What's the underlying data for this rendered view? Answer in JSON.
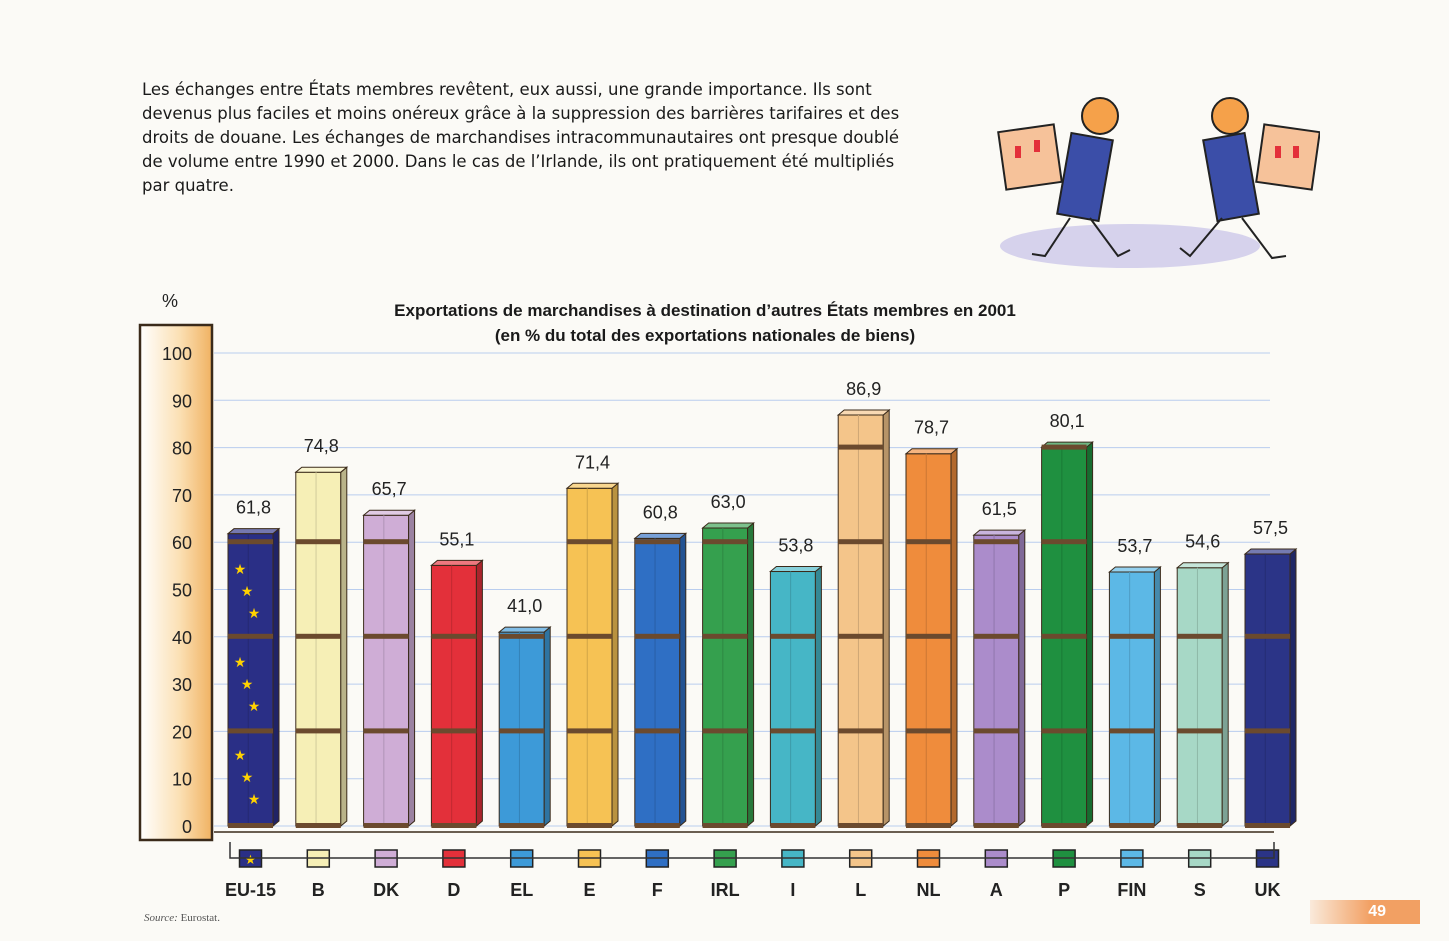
{
  "intro_text": "Les échanges entre États membres revêtent, eux aussi, une grande importance. Ils sont devenus plus faciles et moins onéreux grâce à la suppression des barrières tarifaires et des droits de douane. Les échanges de marchandises intracommunautaires ont presque doublé de volume entre 1990 et 2000. Dans le cas de l’Irlande, ils ont pratiquement été multipliés par quatre.",
  "chart_data": {
    "type": "bar",
    "title": "Exportations de marchandises à destination d’autres États membres en 2001",
    "subtitle": "(en % du total des exportations nationales de biens)",
    "ylabel": "%",
    "ylim": [
      0,
      100
    ],
    "yticks": [
      "0",
      "10",
      "20",
      "30",
      "40",
      "50",
      "60",
      "70",
      "80",
      "90",
      "100"
    ],
    "grid": true,
    "categories": [
      "EU-15",
      "B",
      "DK",
      "D",
      "EL",
      "E",
      "F",
      "IRL",
      "I",
      "L",
      "NL",
      "A",
      "P",
      "FIN",
      "S",
      "UK"
    ],
    "values": [
      61.8,
      74.8,
      65.7,
      55.1,
      41.0,
      71.4,
      60.8,
      63.0,
      53.8,
      86.9,
      78.7,
      61.5,
      80.1,
      53.7,
      54.6,
      57.5
    ],
    "value_labels": [
      "61,8",
      "74,8",
      "65,7",
      "55,1",
      "41,0",
      "71,4",
      "60,8",
      "63,0",
      "53,8",
      "86,9",
      "78,7",
      "61,5",
      "80,1",
      "53,7",
      "54,6",
      "57,5"
    ],
    "colors": [
      "#2a2f86",
      "#f6efb6",
      "#cfadd6",
      "#e3303a",
      "#3d9ad8",
      "#f6c254",
      "#2f6fc4",
      "#35a04e",
      "#46b6c6",
      "#f4c58a",
      "#ef8c3c",
      "#ab8ccb",
      "#1f9040",
      "#5cb8e6",
      "#a7d8c6",
      "#2b3487"
    ]
  },
  "source": {
    "label": "Source:",
    "text": "Eurostat."
  },
  "page_number": "49"
}
